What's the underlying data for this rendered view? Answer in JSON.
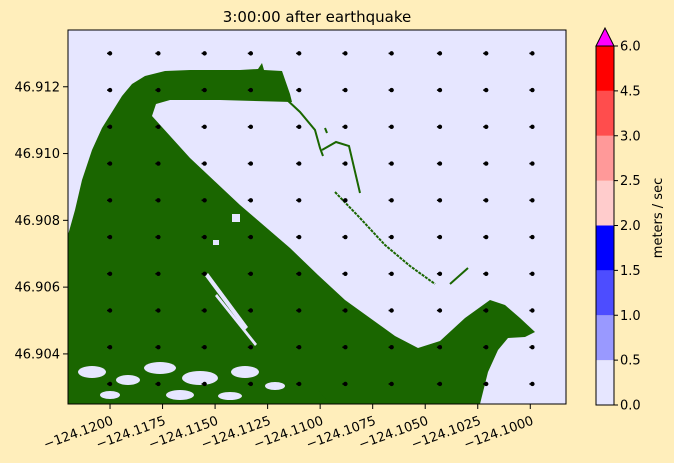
{
  "chart_data": {
    "type": "heatmap",
    "title": "3:00:00 after earthquake",
    "xlim": [
      -124.122,
      -124.0983
    ],
    "ylim": [
      46.9025,
      46.9137
    ],
    "x_ticks": [
      -124.12,
      -124.1175,
      -124.115,
      -124.1125,
      -124.11,
      -124.1075,
      -124.105,
      -124.1025,
      -124.1
    ],
    "x_tick_labels": [
      "−124.1200",
      "−124.1175",
      "−124.1150",
      "−124.1125",
      "−124.1100",
      "−124.1075",
      "−124.1050",
      "−124.1025",
      "−124.1000"
    ],
    "y_ticks": [
      46.904,
      46.906,
      46.908,
      46.91,
      46.912
    ],
    "y_tick_labels": [
      "46.904",
      "46.906",
      "46.908",
      "46.910",
      "46.912"
    ],
    "colorbar": {
      "label": "meters / sec",
      "ticks": [
        "0.0",
        "0.5",
        "1.0",
        "1.5",
        "2.0",
        "2.5",
        "3.0",
        "4.5",
        "6.0"
      ],
      "colors": [
        "#e6e6ff",
        "#9999ff",
        "#4d4dff",
        "#0000ff",
        "#ffcccc",
        "#ff9999",
        "#ff4d4d",
        "#ff0000"
      ],
      "extend_color": "#ff00ff"
    },
    "land_color": "#1a6600",
    "water_speed_mps": "0.0–0.5 everywhere (uniform)",
    "velocity_arrows": {
      "x": [
        -124.12,
        -124.1177,
        -124.1155,
        -124.1133,
        -124.111,
        -124.1088,
        -124.1066,
        -124.1043,
        -124.1021,
        -124.0999
      ],
      "y": [
        46.913,
        46.9119,
        46.9108,
        46.9097,
        46.9086,
        46.9075,
        46.9064,
        46.9053,
        46.9042,
        46.9031
      ],
      "note": "quiver markers on a regular grid; near-zero magnitude"
    }
  }
}
